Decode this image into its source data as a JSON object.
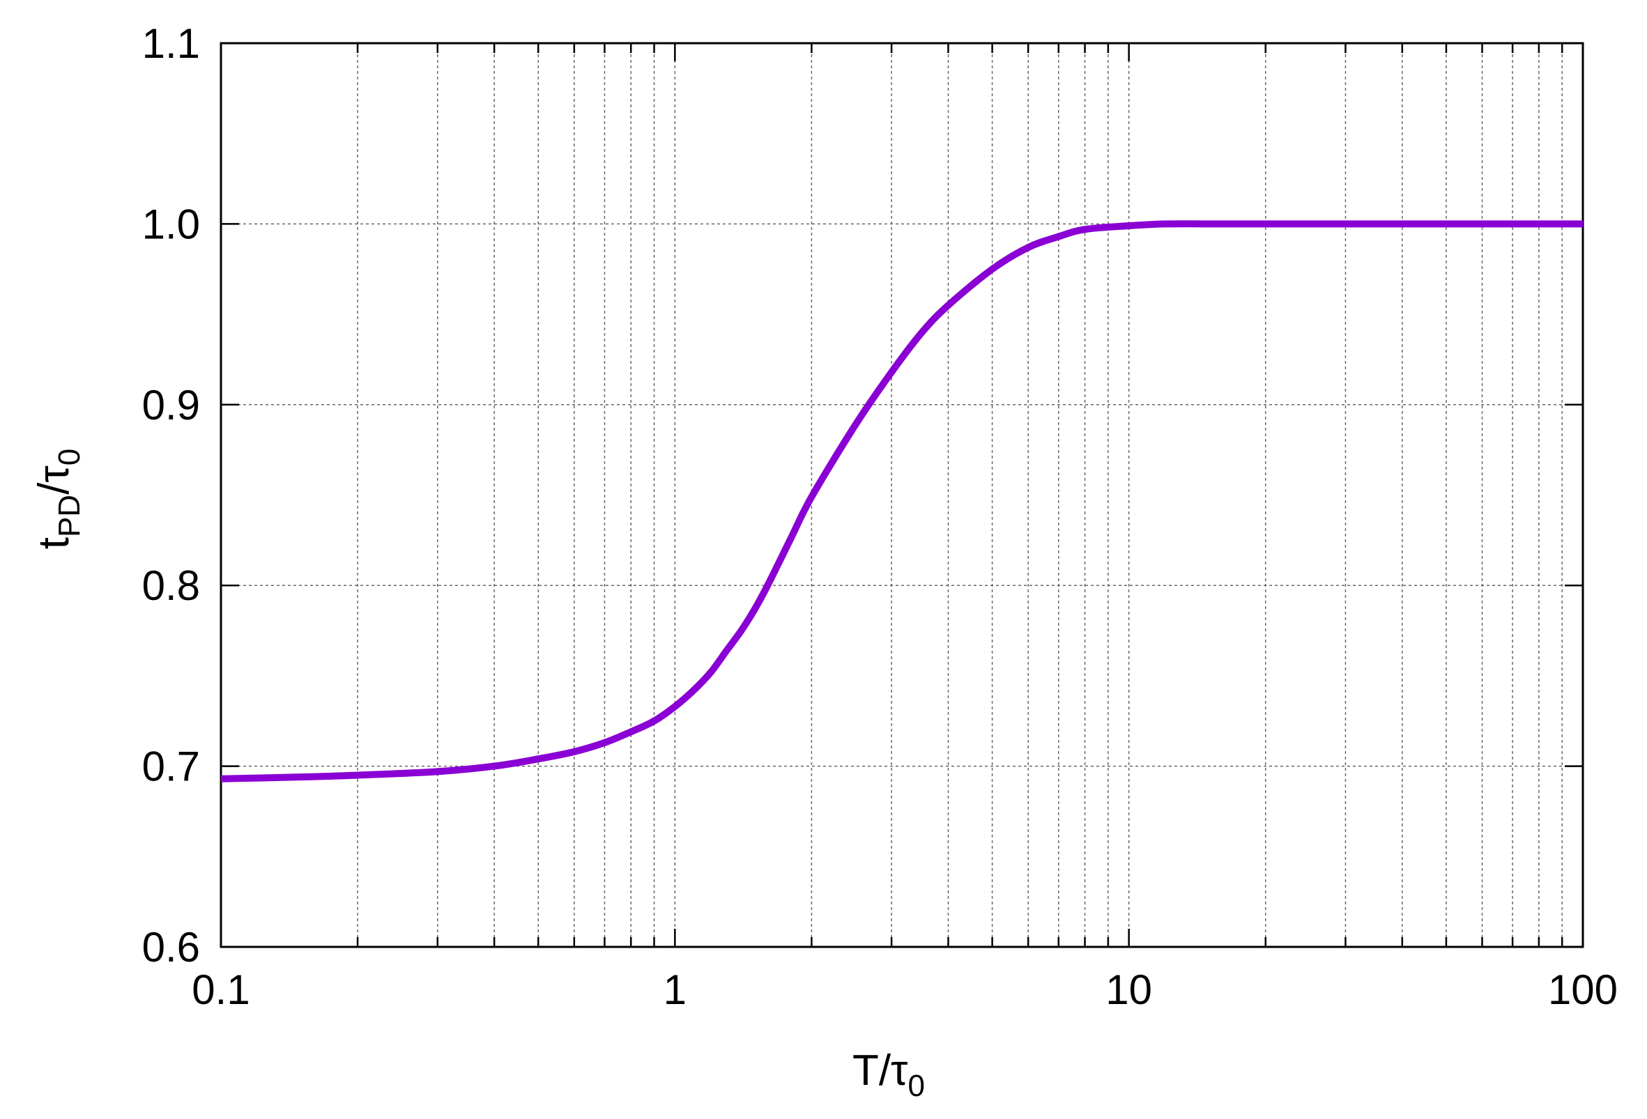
{
  "chart_data": {
    "type": "line",
    "xlabel": {
      "main": "T/τ",
      "sub": "0"
    },
    "ylabel": {
      "main": "t",
      "sub": "PD",
      "mid": "/τ",
      "sub2": "0"
    },
    "x_scale": "log",
    "xlim": [
      0.1,
      100
    ],
    "ylim": [
      0.6,
      1.1
    ],
    "x_ticks": [
      {
        "value": 0.1,
        "label": "0.1"
      },
      {
        "value": 1,
        "label": "1"
      },
      {
        "value": 10,
        "label": "10"
      },
      {
        "value": 100,
        "label": "100"
      }
    ],
    "y_ticks": [
      {
        "value": 0.6,
        "label": "0.6"
      },
      {
        "value": 0.7,
        "label": "0.7"
      },
      {
        "value": 0.8,
        "label": "0.8"
      },
      {
        "value": 0.9,
        "label": "0.9"
      },
      {
        "value": 1.0,
        "label": "1.0"
      },
      {
        "value": 1.1,
        "label": "1.1"
      }
    ],
    "grid": true,
    "series": [
      {
        "color": "#8a00d4",
        "points": [
          [
            0.1,
            0.693
          ],
          [
            0.15,
            0.694
          ],
          [
            0.2,
            0.695
          ],
          [
            0.3,
            0.697
          ],
          [
            0.4,
            0.7
          ],
          [
            0.5,
            0.704
          ],
          [
            0.6,
            0.708
          ],
          [
            0.7,
            0.713
          ],
          [
            0.8,
            0.719
          ],
          [
            0.9,
            0.725
          ],
          [
            1.0,
            0.733
          ],
          [
            1.1,
            0.742
          ],
          [
            1.2,
            0.752
          ],
          [
            1.3,
            0.764
          ],
          [
            1.4,
            0.775
          ],
          [
            1.5,
            0.787
          ],
          [
            1.6,
            0.8
          ],
          [
            1.8,
            0.826
          ],
          [
            2.0,
            0.849
          ],
          [
            2.5,
            0.889
          ],
          [
            3.0,
            0.918
          ],
          [
            3.5,
            0.94
          ],
          [
            4.0,
            0.955
          ],
          [
            5.0,
            0.975
          ],
          [
            6.0,
            0.987
          ],
          [
            7.0,
            0.993
          ],
          [
            8.0,
            0.997
          ],
          [
            10.0,
            0.999
          ],
          [
            12.0,
            1.0
          ],
          [
            15.0,
            1.0
          ],
          [
            20.0,
            1.0
          ],
          [
            50.0,
            1.0
          ],
          [
            100.0,
            1.0
          ]
        ]
      }
    ]
  }
}
